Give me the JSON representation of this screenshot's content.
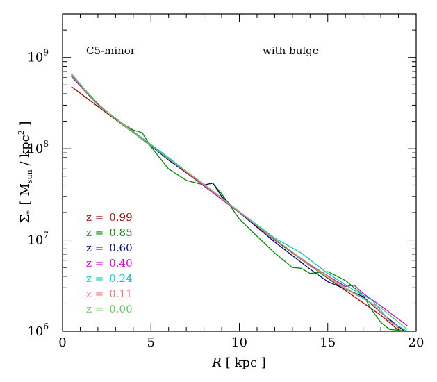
{
  "chart_data": {
    "type": "line",
    "annotations": {
      "left": "C5-minor",
      "right": "with bulge"
    },
    "xlabel": {
      "symbol": "R",
      "unit": "[ kpc ]"
    },
    "ylabel": {
      "symbol": "Σ",
      "symbol_sub": "*",
      "unit_open": "[ M",
      "unit_sub": "sun",
      "unit_mid": " / kpc",
      "unit_sup": "2",
      "unit_close": " ]"
    },
    "xlim": [
      0,
      20
    ],
    "ylim": [
      1000000,
      3000000000
    ],
    "yscale": "log",
    "xticks": [
      0,
      5,
      10,
      15,
      20
    ],
    "yticks": [
      {
        "value": 1000000,
        "base": "10",
        "exp": "6"
      },
      {
        "value": 10000000,
        "base": "10",
        "exp": "7"
      },
      {
        "value": 100000000,
        "base": "10",
        "exp": "8"
      },
      {
        "value": 1000000000,
        "base": "10",
        "exp": "9"
      }
    ],
    "legend_placement": "lower-left",
    "series": [
      {
        "name": "z = 0.99",
        "label_prefix": "z =",
        "label_value": "0.99",
        "color": "#a00000",
        "x": [
          0.5,
          2,
          4,
          6,
          8,
          10,
          12,
          14,
          16,
          18,
          19.5
        ],
        "y": [
          480000000,
          290000000,
          150000000,
          76000000,
          39000000,
          20000000,
          10000000,
          5200000,
          2800000,
          1500000,
          850000
        ]
      },
      {
        "name": "z = 0.85",
        "label_prefix": "z =",
        "label_value": "0.85",
        "color": "#008c00",
        "x": [
          0.5,
          2,
          3,
          4,
          4.5,
          5,
          6,
          7,
          8,
          8.5,
          9,
          10,
          11,
          12,
          13,
          13.5,
          14,
          15,
          16,
          17,
          17.5,
          18,
          18.5,
          19.5
        ],
        "y": [
          650000000,
          310000000,
          210000000,
          160000000,
          150000000,
          105000000,
          60000000,
          45000000,
          40000000,
          42000000,
          32000000,
          17000000,
          11000000,
          7200000,
          5000000,
          4900000,
          4300000,
          4500000,
          3600000,
          2500000,
          1700000,
          1250000,
          1050000,
          1000000
        ]
      },
      {
        "name": "z = 0.60",
        "label_prefix": "z =",
        "label_value": "0.60",
        "color": "#00008c",
        "x": [
          0.5,
          2,
          4,
          6,
          8,
          8.5,
          9,
          10,
          12,
          14,
          15,
          16,
          17,
          18,
          19.5
        ],
        "y": [
          620000000,
          300000000,
          155000000,
          75000000,
          40000000,
          42000000,
          30000000,
          20000000,
          9500000,
          4800000,
          3500000,
          2900000,
          2400000,
          1600000,
          950000
        ]
      },
      {
        "name": "z = 0.40",
        "label_prefix": "z =",
        "label_value": "0.40",
        "color": "#d000d0",
        "x": [
          0.5,
          2,
          4,
          6,
          8,
          10,
          12,
          14,
          16,
          16.5,
          17,
          18,
          19.5
        ],
        "y": [
          620000000,
          305000000,
          152000000,
          78000000,
          39000000,
          20000000,
          10200000,
          5300000,
          3100000,
          3200000,
          2600000,
          1900000,
          1150000
        ]
      },
      {
        "name": "z = 0.24",
        "label_prefix": "z =",
        "label_value": "0.24",
        "color": "#00c8c8",
        "x": [
          0.5,
          2,
          4,
          6,
          8,
          10,
          12,
          13.5,
          15,
          16.5,
          17.5,
          18.5,
          19.5
        ],
        "y": [
          640000000,
          300000000,
          155000000,
          80000000,
          40000000,
          20500000,
          10500000,
          7200000,
          4300000,
          2800000,
          2200000,
          1300000,
          1000000
        ]
      },
      {
        "name": "z = 0.11",
        "label_prefix": "z =",
        "label_value": "0.11",
        "color": "#f07070",
        "x": [
          0.5,
          2,
          4,
          6,
          8,
          10,
          12,
          14,
          16,
          17.5,
          18.5,
          19.5
        ],
        "y": [
          650000000,
          300000000,
          153000000,
          77000000,
          40000000,
          20200000,
          10100000,
          5400000,
          3000000,
          2000000,
          1300000,
          900000
        ]
      },
      {
        "name": "z = 0.00",
        "label_prefix": "z =",
        "label_value": "0.00",
        "color": "#60c860",
        "x": [
          0.5,
          2,
          4,
          6,
          8,
          10,
          12,
          14,
          16,
          18,
          19.5
        ],
        "y": [
          670000000,
          300000000,
          150000000,
          78000000,
          41000000,
          20500000,
          10300000,
          5200000,
          2900000,
          1800000,
          1050000
        ]
      }
    ]
  }
}
